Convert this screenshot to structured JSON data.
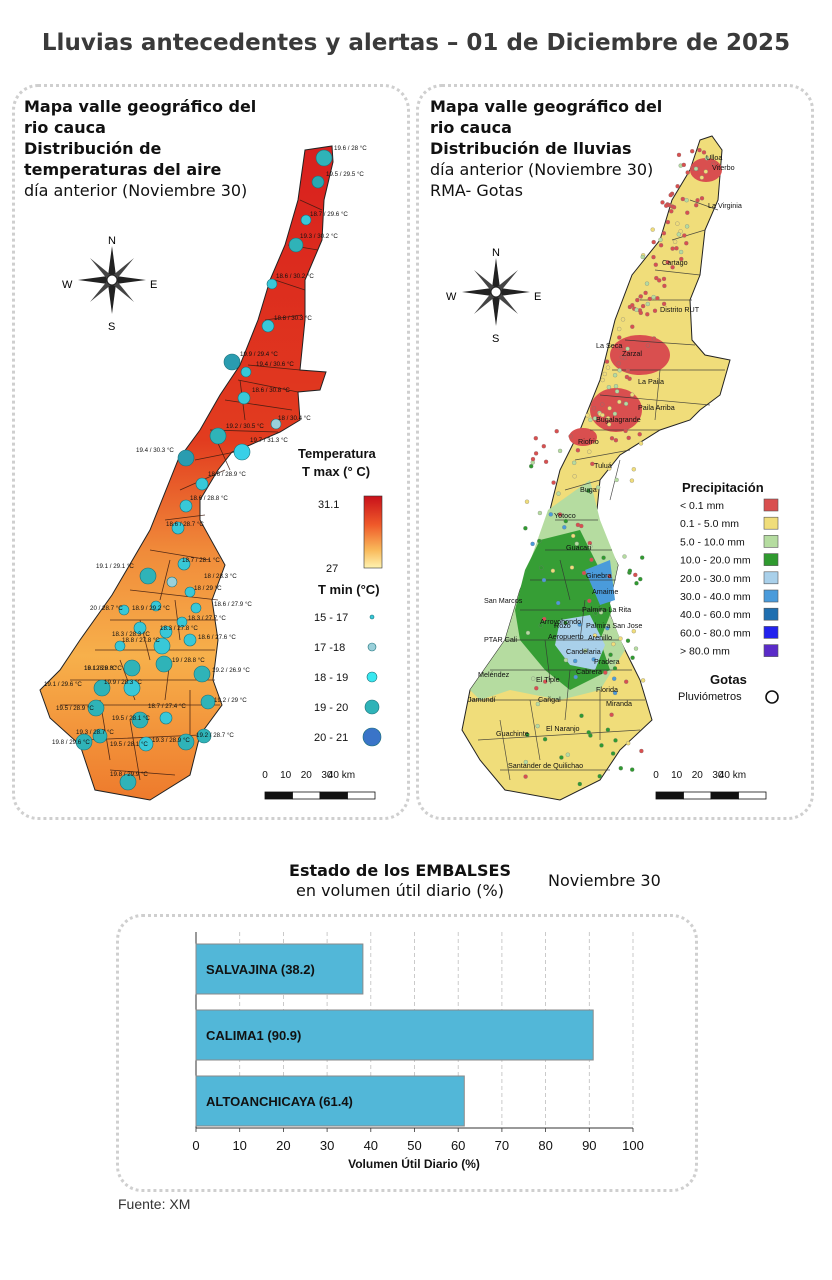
{
  "title": "Lluvias antecedentes y alertas – 01 de Diciembre de 2025",
  "left_map": {
    "title_lines": [
      "Mapa valle geográfico del",
      "rio cauca",
      "Distribución de",
      "temperaturas del aire"
    ],
    "subtitle": "día anterior (Noviembre 30)",
    "legend_title": "Temperatura",
    "legend_tmax_label": "T max (° C)",
    "legend_tmax_high": "31.1",
    "legend_tmax_low": "27",
    "legend_tmin_label": "T min (°C)",
    "legend_tmin_classes": [
      "15 - 17",
      "17 -18",
      "18 - 19",
      "19 - 20",
      "20 - 21"
    ],
    "scale_labels": [
      "0",
      "10",
      "20",
      "30",
      "40 km"
    ],
    "station_labels": [
      "19.6 / 28 °C",
      "19.5 / 29.5 °C",
      "18.7 / 29.6 °C",
      "19.3 / 30.2 °C",
      "18.6 / 30.2 °C",
      "18.8 / 30.3 °C",
      "19.9 / 29.4 °C",
      "19.4 / 30.6 °C",
      "18.6 / 30.8 °C",
      "18 / 30.4 °C",
      "19.2 / 30.5 °C",
      "19.7 / 31.3 °C",
      "19.4 / 30.3 °C",
      "18.6 / 28.9 °C",
      "18.6 / 28.8 °C",
      "18.6 / 28.7 °C",
      "18.7 / 28.1 °C",
      "19.1 / 29.1 °C",
      "18 / 28.3 °C",
      "18 / 29 °C",
      "20 / 28.7 °C",
      "18.9 / 29.2 °C",
      "18.6 / 27.9 °C",
      "18.3 / 27.7 °C",
      "18.3 / 28.3 °C",
      "18.3 / 27.8 °C",
      "18.6 / 27.6 °C",
      "18 / 28.9 °C",
      "18.8 / 27.8 °C",
      "19.1 / 28.8 °C",
      "19.2 / 26.9 °C",
      "19 / 28.8 °C",
      "19.9 / 28.3 °C",
      "19.1 / 29.6 °C",
      "19.2 / 29 °C",
      "19.5 / 28.9 °C",
      "19.5 / 28.1 °C",
      "18.7 / 27.4 °C",
      "19.3 / 28.7 °C",
      "19.5 / 28.1 °C",
      "19.3 / 28.9 °C",
      "19.2 / 28.7 °C",
      "19.8 / 29.6 °C",
      "19.8 / 29.9 °C"
    ]
  },
  "right_map": {
    "title_lines": [
      "Mapa valle geográfico del",
      "rio cauca",
      "Distribución de lluvias"
    ],
    "subtitle_lines": [
      "día anterior (Noviembre 30)",
      "RMA- Gotas"
    ],
    "legend_title": "Precipitación",
    "classes": [
      {
        "label": "< 0.1 mm",
        "color": "#d94f4f"
      },
      {
        "label": "0.1 - 5.0 mm",
        "color": "#f0dd7a"
      },
      {
        "label": "5.0 - 10.0 mm",
        "color": "#b5dca0"
      },
      {
        "label": "10.0 - 20.0 mm",
        "color": "#2f9a2f"
      },
      {
        "label": "20.0 - 30.0 mm",
        "color": "#a9d0ea"
      },
      {
        "label": "30.0 - 40.0 mm",
        "color": "#4a9bdb"
      },
      {
        "label": "40.0 - 60.0 mm",
        "color": "#1f6fb0"
      },
      {
        "label": "60.0 - 80.0 mm",
        "color": "#2222ee"
      },
      {
        "label": "> 80.0 mm",
        "color": "#5a2bc8"
      }
    ],
    "gotas_title": "Gotas",
    "gotas_item": "Pluviómetros",
    "scale_labels": [
      "0",
      "10",
      "20",
      "30",
      "40 km"
    ],
    "places": [
      "Ulloa",
      "Viterbo",
      "La Virginia",
      "Cartago",
      "Distrito RUT",
      "La Seca",
      "Zarzal",
      "La Paila",
      "Paila Arriba",
      "Bugalagrande",
      "Riofrio",
      "Tuluá",
      "Buga",
      "Yotoco",
      "Guacari",
      "Ginebra",
      "Amaime",
      "San Marcos",
      "Rozo",
      "Palmira La Rita",
      "Arroyohondo",
      "Palmira San Jose",
      "Aeropuerto",
      "Arenillo",
      "PTAR Cali",
      "Candelaria",
      "Meléndez",
      "Pradera",
      "Cabrera",
      "El Tiple",
      "Florida",
      "Jamundí",
      "Cañgal",
      "Miranda",
      "Guachinte",
      "El Naranjo",
      "Santander de Quilichao"
    ]
  },
  "compass": {
    "n": "N",
    "s": "S",
    "e": "E",
    "w": "W"
  },
  "reservoirs": {
    "title": "Estado de los EMBALSES",
    "subtitle": "en volumen útil diario (%)",
    "date": "Noviembre 30",
    "chart_data": {
      "type": "bar",
      "orientation": "horizontal",
      "categories": [
        "SALVAJINA (38.2)",
        "CALIMA1 (90.9)",
        "ALTOANCHICAYA (61.4)"
      ],
      "values": [
        38.2,
        90.9,
        61.4
      ],
      "color": "#52b7d8",
      "xlim": [
        0,
        100
      ],
      "xticks": [
        "0",
        "10",
        "20",
        "30",
        "40",
        "50",
        "60",
        "70",
        "80",
        "90",
        "100"
      ],
      "xlabel": "Volumen Útil Diario (%)",
      "grid": "vertical dashed"
    }
  },
  "source": "Fuente: XM"
}
